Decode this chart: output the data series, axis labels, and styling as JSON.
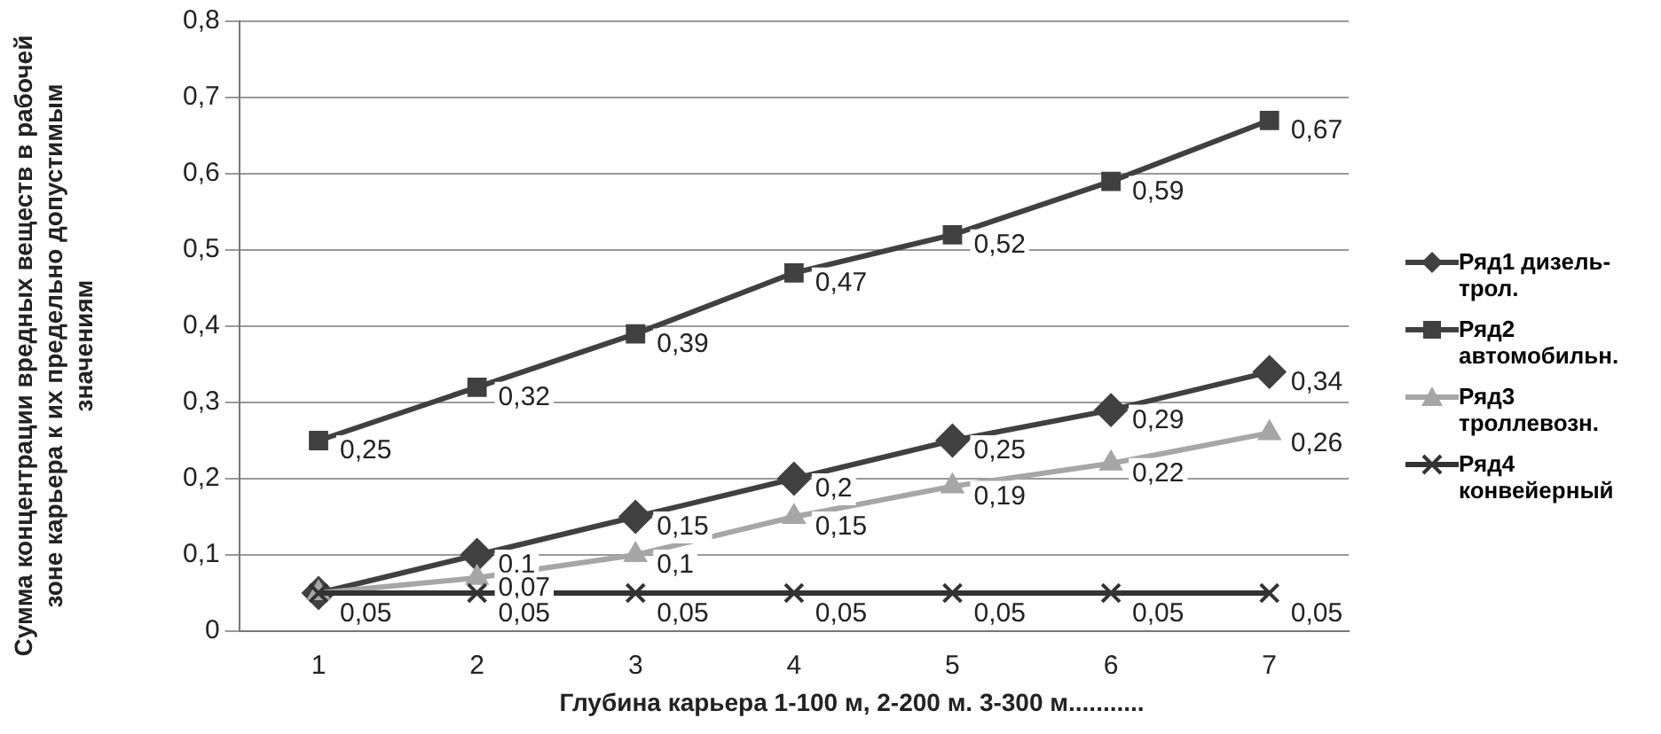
{
  "chart_data": {
    "type": "line",
    "xlabel": "Глубина карьера 1-100 м, 2-200 м. 3-300 м...........",
    "ylabel": "Сумма концентрации вредных веществ в рабочей зоне карьера к их предельно допустимым значениям",
    "categories": [
      "1",
      "2",
      "3",
      "4",
      "5",
      "6",
      "7"
    ],
    "series": [
      {
        "name": "Ряд1 дизель-трол.",
        "color": "#404040",
        "marker": "diamond",
        "values": [
          0.05,
          0.1,
          0.15,
          0.2,
          0.25,
          0.29,
          0.34
        ],
        "value_labels": [
          null,
          "0,1",
          "0,15",
          "0,2",
          "0,25",
          "0,29",
          "0,34"
        ]
      },
      {
        "name": "Ряд2 автомобильн.",
        "color": "#404040",
        "marker": "square",
        "values": [
          0.25,
          0.32,
          0.39,
          0.47,
          0.52,
          0.59,
          0.67
        ],
        "value_labels": [
          "0,25",
          "0,32",
          "0,39",
          "0,47",
          "0,52",
          "0,59",
          "0,67"
        ]
      },
      {
        "name": "Ряд3 троллевозн.",
        "color": "#a6a6a6",
        "marker": "triangle",
        "values": [
          0.05,
          0.07,
          0.1,
          0.15,
          0.19,
          0.22,
          0.26
        ],
        "value_labels": [
          null,
          "0,07",
          "0,1",
          "0,15",
          "0,19",
          "0,22",
          "0,26"
        ]
      },
      {
        "name": "Ряд4 конвейерный",
        "color": "#333333",
        "marker": "cross",
        "values": [
          0.05,
          0.05,
          0.05,
          0.05,
          0.05,
          0.05,
          0.05
        ],
        "value_labels": [
          "0,05",
          "0,05",
          "0,05",
          "0,05",
          "0,05",
          "0,05",
          "0,05"
        ]
      }
    ],
    "ylim": [
      0,
      0.8
    ],
    "yticks": [
      0,
      {
        "value": 0.1,
        "label": "0,1"
      },
      {
        "value": 0.2,
        "label": "0,2"
      },
      {
        "value": 0.3,
        "label": "0,3"
      },
      {
        "value": 0.4,
        "label": "0,4"
      },
      {
        "value": 0.5,
        "label": "0,5"
      },
      {
        "value": 0.6,
        "label": "0,6"
      },
      {
        "value": 0.7,
        "label": "0,7"
      },
      {
        "value": 0.8,
        "label": "0,8"
      }
    ],
    "grid": "y",
    "legend": "right"
  }
}
